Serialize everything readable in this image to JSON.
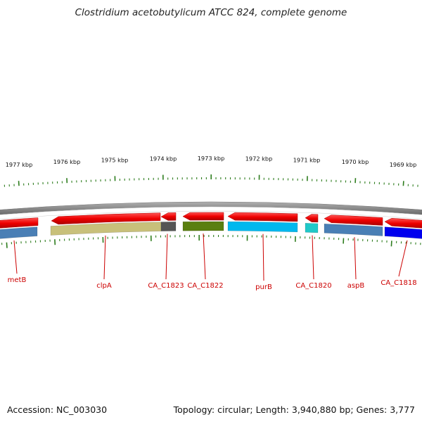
{
  "title": "Clostridium acetobutylicum ATCC 824, complete genome",
  "footer": {
    "accession": "Accession: NC_003030",
    "summary": "Topology: circular; Length: 3,940,880 bp; Genes: 3,777"
  },
  "ticks": [
    {
      "label": "1977 kbp"
    },
    {
      "label": "1976 kbp"
    },
    {
      "label": "1975 kbp"
    },
    {
      "label": "1974 kbp"
    },
    {
      "label": "1973 kbp"
    },
    {
      "label": "1972 kbp"
    },
    {
      "label": "1971 kbp"
    },
    {
      "label": "1970 kbp"
    },
    {
      "label": "1969 kbp"
    }
  ],
  "genes": [
    {
      "label": "metB",
      "color": "#4a7fb5"
    },
    {
      "label": "clpA",
      "color": "#c8c07a"
    },
    {
      "label": "CA_C1823",
      "color": "#555555"
    },
    {
      "label": "CA_C1822",
      "color": "#5a7f10"
    },
    {
      "label": "purB",
      "color": "#00b8ee"
    },
    {
      "label": "CA_C1820",
      "color": "#20c8c8"
    },
    {
      "label": "aspB",
      "color": "#4a7fb5"
    },
    {
      "label": "CA_C1818",
      "color": "#0000ee"
    }
  ],
  "colors": {
    "forward_strand": "#ee0000",
    "backbone": "#888888",
    "tick": "#2e7d1e",
    "label": "#cc0000"
  }
}
